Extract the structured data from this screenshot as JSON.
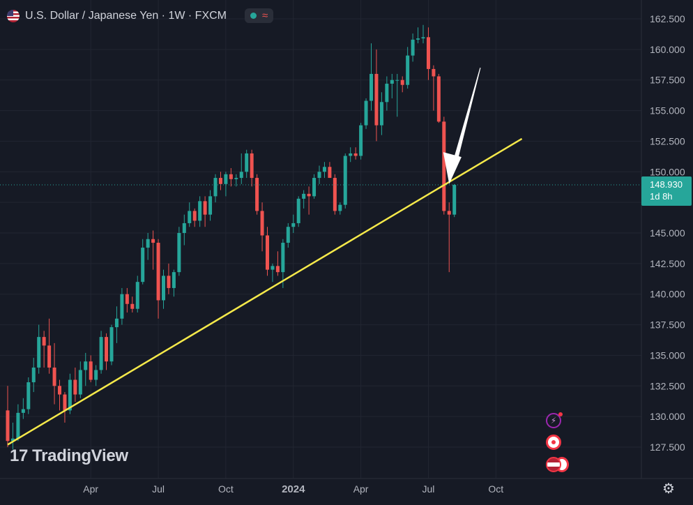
{
  "header": {
    "title": "U.S. Dollar / Japanese Yen · 1W · FXCM",
    "wave_symbol": "≈"
  },
  "logo": {
    "mark": "17",
    "text": "TradingView"
  },
  "price_label": {
    "price": "148.930",
    "countdown": "1d 8h"
  },
  "colors": {
    "up": "#26a69a",
    "down": "#ef5350",
    "trendline": "#f5e94a",
    "background": "#161a25",
    "grid": "#222632"
  },
  "icons": [
    "flag-us-icon",
    "lightning-icon",
    "record-icon",
    "flag-jp-icon",
    "settings-icon"
  ],
  "chart_data": {
    "type": "candlestick",
    "title": "U.S. Dollar / Japanese Yen · 1W · FXCM",
    "ylim": [
      126.5,
      163.5
    ],
    "y_ticks": [
      "162.500",
      "160.000",
      "157.500",
      "155.000",
      "152.500",
      "150.000",
      "147.500",
      "145.000",
      "142.500",
      "140.000",
      "137.500",
      "135.000",
      "132.500",
      "130.000",
      "127.500"
    ],
    "y_tick_values": [
      162.5,
      160,
      157.5,
      155,
      152.5,
      150,
      147.5,
      145,
      142.5,
      140,
      137.5,
      135,
      132.5,
      130,
      127.5
    ],
    "x_ticks": [
      {
        "label": "Apr",
        "week": 16
      },
      {
        "label": "Jul",
        "week": 29
      },
      {
        "label": "Oct",
        "week": 42
      },
      {
        "label": "2024",
        "week": 55
      },
      {
        "label": "Apr",
        "week": 68
      },
      {
        "label": "Jul",
        "week": 81
      },
      {
        "label": "Oct",
        "week": 94
      }
    ],
    "current_price": 148.93,
    "trendline": {
      "from": {
        "week": 0,
        "price": 127.7
      },
      "to": {
        "week": 99,
        "price": 152.7
      }
    },
    "arrow": {
      "from": {
        "week": 91,
        "price": 158.5
      },
      "to": {
        "week": 85,
        "price": 149.0
      }
    },
    "candles": [
      [
        130.5,
        132.5,
        127.5,
        128.0
      ],
      [
        128.0,
        129.5,
        127.3,
        128.2
      ],
      [
        128.2,
        131.0,
        128.0,
        130.3
      ],
      [
        130.3,
        131.5,
        129.8,
        130.6
      ],
      [
        130.6,
        133.2,
        130.2,
        132.8
      ],
      [
        132.8,
        134.8,
        132.0,
        134.0
      ],
      [
        134.0,
        137.5,
        133.5,
        136.5
      ],
      [
        136.5,
        137.0,
        134.0,
        135.8
      ],
      [
        135.8,
        138.0,
        133.5,
        134.0
      ],
      [
        134.0,
        136.0,
        131.0,
        132.5
      ],
      [
        132.5,
        133.0,
        130.5,
        131.8
      ],
      [
        131.8,
        132.0,
        129.5,
        130.5
      ],
      [
        130.5,
        133.5,
        130.2,
        133.0
      ],
      [
        133.0,
        134.0,
        131.2,
        131.8
      ],
      [
        131.8,
        134.5,
        131.5,
        133.8
      ],
      [
        133.8,
        135.2,
        132.5,
        134.5
      ],
      [
        134.5,
        135.0,
        132.8,
        133.0
      ],
      [
        133.0,
        134.2,
        132.5,
        133.8
      ],
      [
        133.8,
        137.0,
        133.5,
        136.5
      ],
      [
        136.5,
        136.8,
        133.8,
        134.5
      ],
      [
        134.5,
        137.5,
        134.2,
        137.3
      ],
      [
        137.3,
        139.0,
        136.0,
        138.0
      ],
      [
        138.0,
        140.5,
        137.5,
        140.0
      ],
      [
        140.0,
        140.5,
        138.5,
        139.2
      ],
      [
        139.2,
        139.8,
        138.5,
        138.8
      ],
      [
        138.8,
        141.5,
        138.5,
        141.0
      ],
      [
        141.0,
        144.5,
        140.8,
        143.8
      ],
      [
        143.8,
        145.0,
        142.8,
        144.5
      ],
      [
        144.5,
        145.2,
        142.0,
        144.2
      ],
      [
        144.2,
        144.5,
        138.0,
        139.5
      ],
      [
        139.5,
        142.0,
        138.8,
        141.5
      ],
      [
        141.5,
        142.5,
        140.0,
        140.5
      ],
      [
        140.5,
        142.0,
        139.8,
        141.8
      ],
      [
        141.8,
        145.5,
        141.5,
        145.0
      ],
      [
        145.0,
        146.5,
        144.0,
        145.8
      ],
      [
        145.8,
        147.5,
        145.5,
        146.8
      ],
      [
        146.8,
        147.0,
        145.5,
        146.0
      ],
      [
        146.0,
        148.0,
        145.5,
        147.6
      ],
      [
        147.6,
        148.0,
        145.5,
        146.5
      ],
      [
        146.5,
        148.5,
        146.0,
        148.0
      ],
      [
        148.0,
        149.8,
        147.5,
        149.5
      ],
      [
        149.5,
        150.0,
        148.5,
        149.0
      ],
      [
        149.0,
        150.0,
        148.0,
        149.8
      ],
      [
        149.8,
        150.3,
        148.8,
        149.4
      ],
      [
        149.4,
        149.8,
        148.8,
        149.5
      ],
      [
        149.5,
        151.5,
        149.0,
        150.0
      ],
      [
        150.0,
        151.8,
        149.5,
        151.5
      ],
      [
        151.5,
        151.8,
        148.8,
        149.5
      ],
      [
        149.5,
        149.8,
        146.5,
        146.8
      ],
      [
        146.8,
        147.5,
        143.5,
        144.8
      ],
      [
        144.8,
        145.5,
        141.5,
        142.0
      ],
      [
        142.0,
        142.5,
        141.0,
        142.3
      ],
      [
        142.3,
        143.5,
        141.5,
        141.8
      ],
      [
        141.8,
        144.5,
        140.5,
        144.2
      ],
      [
        144.2,
        145.8,
        143.8,
        145.5
      ],
      [
        145.5,
        146.5,
        145.0,
        145.8
      ],
      [
        145.8,
        148.0,
        145.5,
        147.8
      ],
      [
        147.8,
        148.5,
        147.0,
        148.2
      ],
      [
        148.2,
        148.8,
        146.5,
        148.0
      ],
      [
        148.0,
        149.8,
        147.8,
        149.5
      ],
      [
        149.5,
        150.5,
        149.0,
        150.0
      ],
      [
        150.0,
        150.8,
        149.5,
        150.4
      ],
      [
        150.4,
        150.8,
        149.5,
        149.5
      ],
      [
        149.5,
        149.8,
        146.5,
        146.8
      ],
      [
        146.8,
        147.5,
        146.5,
        147.3
      ],
      [
        147.3,
        151.5,
        147.0,
        151.3
      ],
      [
        151.3,
        152.0,
        150.8,
        151.5
      ],
      [
        151.5,
        152.0,
        151.0,
        151.3
      ],
      [
        151.3,
        154.0,
        151.0,
        153.8
      ],
      [
        153.8,
        156.0,
        153.5,
        155.8
      ],
      [
        155.8,
        160.5,
        155.0,
        158.0
      ],
      [
        158.0,
        160.0,
        152.5,
        153.8
      ],
      [
        153.8,
        156.5,
        153.0,
        155.7
      ],
      [
        155.7,
        157.8,
        155.0,
        157.2
      ],
      [
        157.2,
        158.0,
        156.0,
        157.5
      ],
      [
        157.5,
        158.0,
        154.5,
        157.5
      ],
      [
        157.5,
        157.8,
        156.5,
        157.1
      ],
      [
        157.1,
        160.2,
        156.8,
        159.5
      ],
      [
        159.5,
        161.3,
        159.0,
        160.8
      ],
      [
        160.8,
        161.8,
        160.5,
        160.9
      ],
      [
        160.9,
        162.0,
        160.5,
        161.0
      ],
      [
        161.0,
        161.8,
        157.5,
        158.4
      ],
      [
        158.4,
        158.7,
        155.0,
        157.8
      ],
      [
        157.8,
        158.0,
        154.0,
        154.1
      ],
      [
        154.1,
        154.5,
        146.5,
        146.8
      ],
      [
        146.8,
        147.5,
        141.8,
        146.5
      ],
      [
        146.5,
        149.0,
        146.3,
        148.93
      ]
    ]
  }
}
